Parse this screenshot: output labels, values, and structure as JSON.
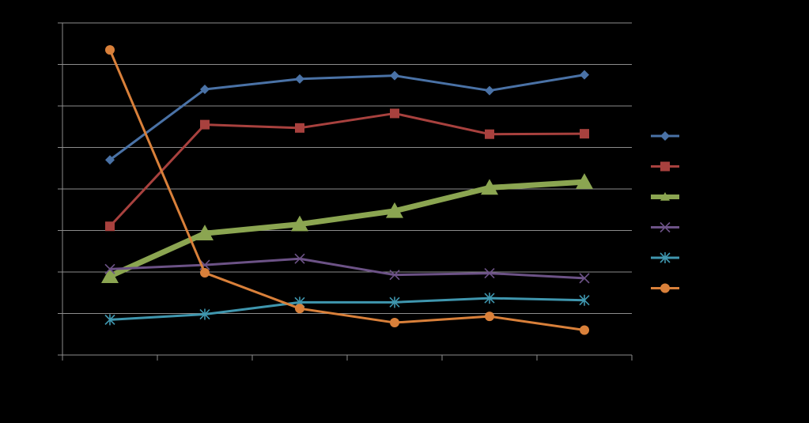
{
  "chart_data": {
    "type": "line",
    "background": "#000000",
    "grid": true,
    "legend_position": "right",
    "ylim": [
      0,
      8
    ],
    "categories": [
      "",
      "",
      "",
      "",
      "",
      ""
    ],
    "series": [
      {
        "color": "#4a72a6",
        "marker": "diamond",
        "bold": false,
        "values": [
          4.7,
          6.4,
          6.65,
          6.73,
          6.37,
          6.75
        ]
      },
      {
        "color": "#a8413e",
        "marker": "square",
        "bold": false,
        "values": [
          3.1,
          5.55,
          5.47,
          5.82,
          5.32,
          5.33
        ]
      },
      {
        "color": "#8ba551",
        "marker": "triangle",
        "bold": true,
        "values": [
          1.9,
          2.93,
          3.15,
          3.47,
          4.03,
          4.17
        ]
      },
      {
        "color": "#6c5286",
        "marker": "x",
        "bold": false,
        "values": [
          2.07,
          2.17,
          2.32,
          1.93,
          1.97,
          1.85
        ]
      },
      {
        "color": "#3f96ae",
        "marker": "star",
        "bold": false,
        "values": [
          0.85,
          0.98,
          1.27,
          1.27,
          1.37,
          1.32
        ]
      },
      {
        "color": "#d9803a",
        "marker": "circle",
        "bold": false,
        "values": [
          7.35,
          1.98,
          1.12,
          0.78,
          0.93,
          0.6
        ]
      }
    ]
  }
}
